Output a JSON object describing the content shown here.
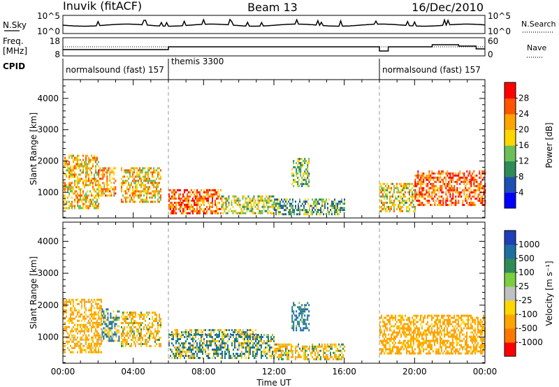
{
  "header": {
    "station": "Inuvik (fitACF)",
    "beam": "Beam 13",
    "date": "16/Dec/2010"
  },
  "strip": {
    "nsky_label": "N.Sky",
    "nsearch_label": "N.Search",
    "freq_label_1": "Freq.",
    "freq_label_2": "[MHz]",
    "nave_label": "Nave",
    "cpid_label": "CPID",
    "nsky_ticks": [
      "10^5",
      "10^0"
    ],
    "nsearch_ticks": [
      "10^5",
      "10^0"
    ],
    "freq_ticks": [
      "18",
      "8"
    ],
    "nave_ticks": [
      "60",
      "0"
    ],
    "cpid_segments": [
      {
        "label": "normalsound (fast) 157",
        "start": 0,
        "end": 6
      },
      {
        "label": "themis 3300",
        "start": 6,
        "end": 18
      },
      {
        "label": "normalsound (fast) 157",
        "start": 18,
        "end": 24
      }
    ]
  },
  "colors": {
    "power_scale": [
      "#0000ff",
      "#1f4fb4",
      "#2e8b57",
      "#6bbf59",
      "#ffd700",
      "#ffa500",
      "#ff5500",
      "#ff0000"
    ],
    "velocity_scale": [
      "#1f3fb8",
      "#1e6fa0",
      "#2e8b57",
      "#7ccd3f",
      "#c0c0c0",
      "#ffd700",
      "#ffa500",
      "#ff7700",
      "#ff0000"
    ],
    "ground_scatter": "#c0c0c0"
  },
  "chart_data": [
    {
      "type": "heatmap",
      "panel": "power",
      "xlabel": "Time UT",
      "ylabel": "Slant Range [km]",
      "xlim": [
        0,
        24
      ],
      "ylim": [
        180,
        4600
      ],
      "xticks": [
        "00:00",
        "04:00",
        "08:00",
        "12:00",
        "16:00",
        "20:00",
        "00:00"
      ],
      "yticks": [
        1000,
        2000,
        3000,
        4000
      ],
      "colorbar": {
        "label": "Power [dB]",
        "ticks": [
          4,
          8,
          12,
          16,
          20,
          24,
          28
        ],
        "range": [
          0,
          32
        ]
      },
      "scatter_regions": [
        {
          "t0": 0.0,
          "t1": 2.0,
          "r0": 500,
          "r1": 2200,
          "level": 20
        },
        {
          "t0": 2.0,
          "t1": 3.0,
          "r0": 900,
          "r1": 1800,
          "level": 22
        },
        {
          "t0": 3.3,
          "t1": 5.6,
          "r0": 700,
          "r1": 1800,
          "level": 20
        },
        {
          "t0": 6.0,
          "t1": 9.0,
          "r0": 350,
          "r1": 1100,
          "level": 26
        },
        {
          "t0": 9.0,
          "t1": 12.0,
          "r0": 300,
          "r1": 900,
          "level": 16
        },
        {
          "t0": 12.0,
          "t1": 16.0,
          "r0": 300,
          "r1": 800,
          "level": 12
        },
        {
          "t0": 13.0,
          "t1": 14.0,
          "r0": 1200,
          "r1": 2100,
          "level": 14
        },
        {
          "t0": 18.0,
          "t1": 20.0,
          "r0": 400,
          "r1": 1300,
          "level": 18
        },
        {
          "t0": 20.0,
          "t1": 24.0,
          "r0": 600,
          "r1": 1700,
          "level": 26
        }
      ]
    },
    {
      "type": "heatmap",
      "panel": "velocity",
      "xlabel": "Time UT",
      "ylabel": "Slant Range [km]",
      "xlim": [
        0,
        24
      ],
      "ylim": [
        180,
        4600
      ],
      "xticks": [
        "00:00",
        "04:00",
        "08:00",
        "12:00",
        "16:00",
        "20:00",
        "00:00"
      ],
      "yticks": [
        1000,
        2000,
        3000,
        4000
      ],
      "colorbar": {
        "label": "Velocity [m s⁻¹]",
        "ticks": [
          "1000",
          "500",
          "100",
          "25",
          "-25",
          "-100",
          "-500",
          "-1000"
        ]
      },
      "scatter_regions": [
        {
          "t0": 0.0,
          "t1": 2.2,
          "r0": 500,
          "r1": 2200,
          "velocity": -200
        },
        {
          "t0": 2.2,
          "t1": 3.2,
          "r0": 900,
          "r1": 1900,
          "velocity": 50
        },
        {
          "t0": 3.3,
          "t1": 5.6,
          "r0": 700,
          "r1": 1800,
          "velocity": -150
        },
        {
          "t0": 6.0,
          "t1": 12.0,
          "r0": 350,
          "r1": 1100,
          "velocity": 60
        },
        {
          "t0": 6.0,
          "t1": 11.0,
          "r0": 1050,
          "r1": 1250,
          "velocity": 0
        },
        {
          "t0": 12.0,
          "t1": 16.0,
          "r0": 300,
          "r1": 800,
          "velocity": -100
        },
        {
          "t0": 13.0,
          "t1": 14.0,
          "r0": 1200,
          "r1": 2100,
          "velocity": 200
        },
        {
          "t0": 18.0,
          "t1": 24.0,
          "r0": 500,
          "r1": 1700,
          "velocity": -250
        }
      ]
    }
  ]
}
